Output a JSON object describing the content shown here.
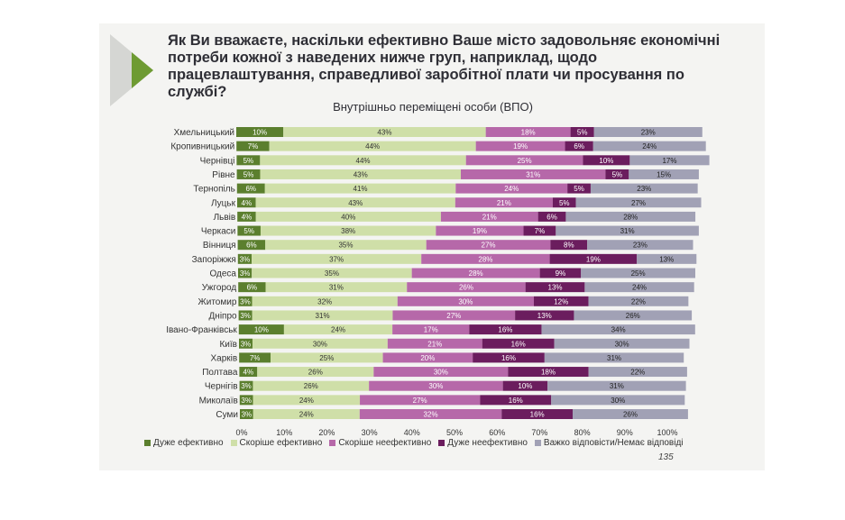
{
  "slide": {
    "question": "Як Ви вважаєте, наскільки ефективно Ваше місто задовольняє економічні потреби кожної з наведених нижче груп, наприклад, щодо працевлаштування, справедливої заробітної плати чи просування по службі?",
    "page_number": "135"
  },
  "chart_data": {
    "type": "bar",
    "orientation": "horizontal",
    "stacked": true,
    "title": "Внутрішньо переміщені особи (ВПО)",
    "xlim": [
      0,
      100
    ],
    "x_ticks": [
      "0%",
      "10%",
      "20%",
      "30%",
      "40%",
      "50%",
      "60%",
      "70%",
      "80%",
      "90%",
      "100%"
    ],
    "grid": false,
    "legend_position": "bottom",
    "categories": [
      "Хмельницький",
      "Кропивницький",
      "Чернівці",
      "Рівне",
      "Тернопіль",
      "Луцьк",
      "Львів",
      "Черкаси",
      "Вінниця",
      "Запоріжжя",
      "Одеса",
      "Ужгород",
      "Житомир",
      "Дніпро",
      "Івано-Франківськ",
      "Київ",
      "Харків",
      "Полтава",
      "Чернігів",
      "Миколаїв",
      "Суми"
    ],
    "series": [
      {
        "name": "Дуже ефективно",
        "color": "#5b7f2e",
        "values": [
          10,
          7,
          5,
          5,
          6,
          4,
          4,
          5,
          6,
          3,
          3,
          6,
          3,
          3,
          10,
          3,
          7,
          4,
          3,
          3,
          3
        ]
      },
      {
        "name": "Скоріше ефективно",
        "color": "#cfdfa8",
        "values": [
          43,
          44,
          44,
          43,
          41,
          43,
          40,
          38,
          35,
          37,
          35,
          31,
          32,
          31,
          24,
          30,
          25,
          26,
          26,
          24,
          24
        ]
      },
      {
        "name": "Скоріше неефективно",
        "color": "#b668a9",
        "values": [
          18,
          19,
          25,
          31,
          24,
          21,
          21,
          19,
          27,
          28,
          28,
          26,
          30,
          27,
          17,
          21,
          20,
          30,
          30,
          27,
          32
        ]
      },
      {
        "name": "Дуже неефективно",
        "color": "#6b1d5e",
        "values": [
          5,
          6,
          10,
          5,
          5,
          5,
          6,
          7,
          8,
          19,
          9,
          13,
          12,
          13,
          16,
          16,
          16,
          18,
          10,
          16,
          16
        ]
      },
      {
        "name": "Важко відповісти/Немає відповіді",
        "color": "#a1a1b5",
        "values": [
          23,
          24,
          17,
          15,
          23,
          27,
          28,
          31,
          23,
          13,
          25,
          24,
          22,
          26,
          34,
          30,
          31,
          22,
          31,
          30,
          26
        ]
      }
    ]
  }
}
